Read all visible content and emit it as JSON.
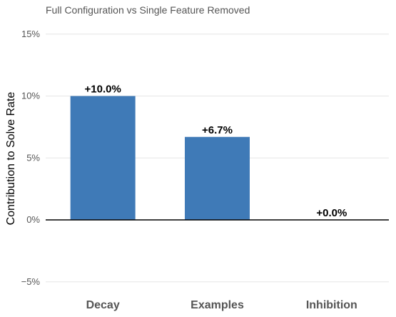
{
  "chart_data": {
    "type": "bar",
    "title": "Full Configuration vs Single Feature Removed",
    "ylabel": "Contribution to Solve Rate",
    "xlabel": "",
    "categories": [
      "Decay",
      "Examples",
      "Inhibition"
    ],
    "values": [
      10.0,
      6.7,
      0.0
    ],
    "data_labels": [
      "+10.0%",
      "+6.7%",
      "+0.0%"
    ],
    "ylim": [
      -6,
      15.5
    ],
    "yticks": [
      15,
      10,
      5,
      0,
      -5
    ],
    "ytick_labels": [
      "15%",
      "10%",
      "5%",
      "0%",
      "−5%"
    ],
    "grid": true,
    "bar_color": "#3f7ab7",
    "zero_line_color": "#000000"
  }
}
